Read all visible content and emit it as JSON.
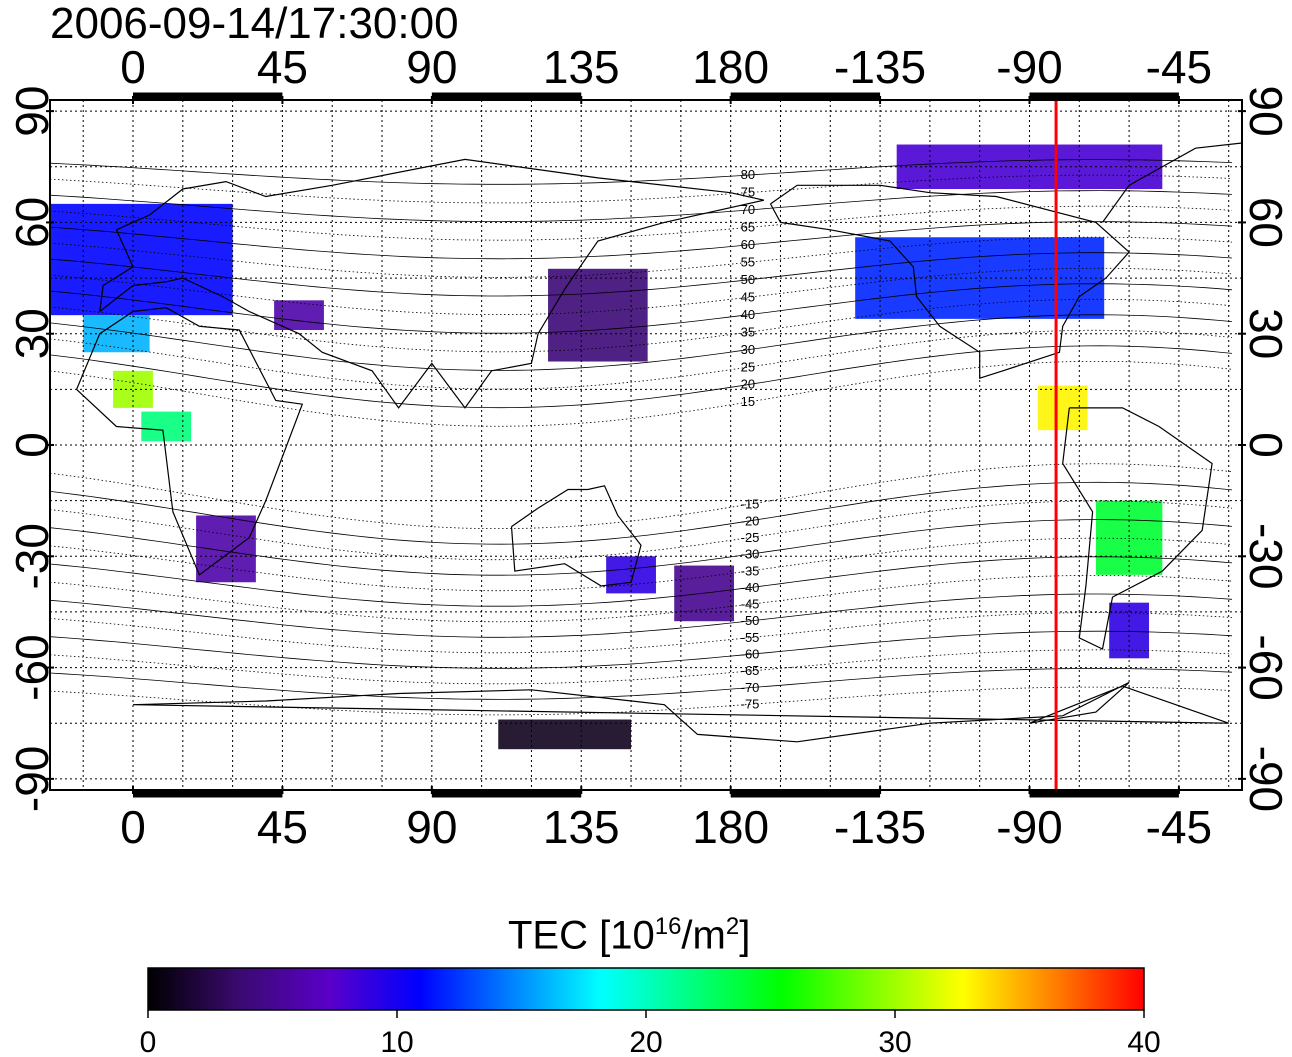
{
  "title": "2006-09-14/17:30:00",
  "map": {
    "x_ticks": [
      {
        "lon": 0,
        "label": "0"
      },
      {
        "lon": 45,
        "label": "45"
      },
      {
        "lon": 90,
        "label": "90"
      },
      {
        "lon": 135,
        "label": "135"
      },
      {
        "lon": 180,
        "label": "180"
      },
      {
        "lon": 225,
        "label": "-135"
      },
      {
        "lon": 270,
        "label": "-90"
      },
      {
        "lon": 315,
        "label": "-45"
      }
    ],
    "y_ticks": [
      {
        "lat": 90,
        "label": "90"
      },
      {
        "lat": 60,
        "label": "60"
      },
      {
        "lat": 30,
        "label": "30"
      },
      {
        "lat": 0,
        "label": "0"
      },
      {
        "lat": -30,
        "label": "-30"
      },
      {
        "lat": -60,
        "label": "-60"
      },
      {
        "lat": -90,
        "label": "-90"
      }
    ],
    "lon_range": [
      -25,
      334
    ],
    "lat_range": [
      -93,
      93
    ],
    "terminator_lon": -82,
    "terminator_color": "#ff0000",
    "contour_labels": [
      "80",
      "75",
      "70",
      "65",
      "60",
      "55",
      "50",
      "45",
      "40",
      "35",
      "30",
      "25",
      "20",
      "15",
      "-15",
      "-20",
      "-25",
      "-30",
      "-35",
      "-40",
      "-45",
      "-50",
      "-55",
      "-60",
      "-65",
      "-70",
      "-75"
    ],
    "tec_patches": [
      {
        "lon": 0,
        "lat": 50,
        "w": 60,
        "h": 30,
        "tec": 11
      },
      {
        "lon": -5,
        "lat": 30,
        "w": 20,
        "h": 10,
        "tec": 16
      },
      {
        "lon": 0,
        "lat": 15,
        "w": 12,
        "h": 10,
        "tec": 30
      },
      {
        "lon": 10,
        "lat": 5,
        "w": 15,
        "h": 8,
        "tec": 22
      },
      {
        "lon": 28,
        "lat": -28,
        "w": 18,
        "h": 18,
        "tec": 6
      },
      {
        "lon": 50,
        "lat": 35,
        "w": 15,
        "h": 8,
        "tec": 6
      },
      {
        "lon": 140,
        "lat": 35,
        "w": 30,
        "h": 25,
        "tec": 4
      },
      {
        "lon": 150,
        "lat": -35,
        "w": 15,
        "h": 10,
        "tec": 9
      },
      {
        "lon": 172,
        "lat": -40,
        "w": 18,
        "h": 15,
        "tec": 5
      },
      {
        "lon": 255,
        "lat": 45,
        "w": 75,
        "h": 22,
        "tec": 12
      },
      {
        "lon": 270,
        "lat": 75,
        "w": 80,
        "h": 12,
        "tec": 8
      },
      {
        "lon": 280,
        "lat": 10,
        "w": 15,
        "h": 12,
        "tec": 33
      },
      {
        "lon": 300,
        "lat": -25,
        "w": 20,
        "h": 20,
        "tec": 24
      },
      {
        "lon": 300,
        "lat": -50,
        "w": 12,
        "h": 15,
        "tec": 9
      },
      {
        "lon": 130,
        "lat": -78,
        "w": 40,
        "h": 8,
        "tec": 1
      }
    ]
  },
  "colorbar": {
    "title_prefix": "TEC  [10",
    "title_sup1": "16",
    "title_mid": "/m",
    "title_sup2": "2",
    "title_suffix": "]",
    "min": 0,
    "max": 40,
    "labels": [
      "0",
      "10",
      "20",
      "30",
      "40"
    ],
    "colors": [
      "#000000",
      "#3a0a6e",
      "#5a00c8",
      "#0000ff",
      "#0080ff",
      "#00ffff",
      "#00ff80",
      "#00ff00",
      "#80ff00",
      "#ffff00",
      "#ff8000",
      "#ff0000"
    ]
  }
}
